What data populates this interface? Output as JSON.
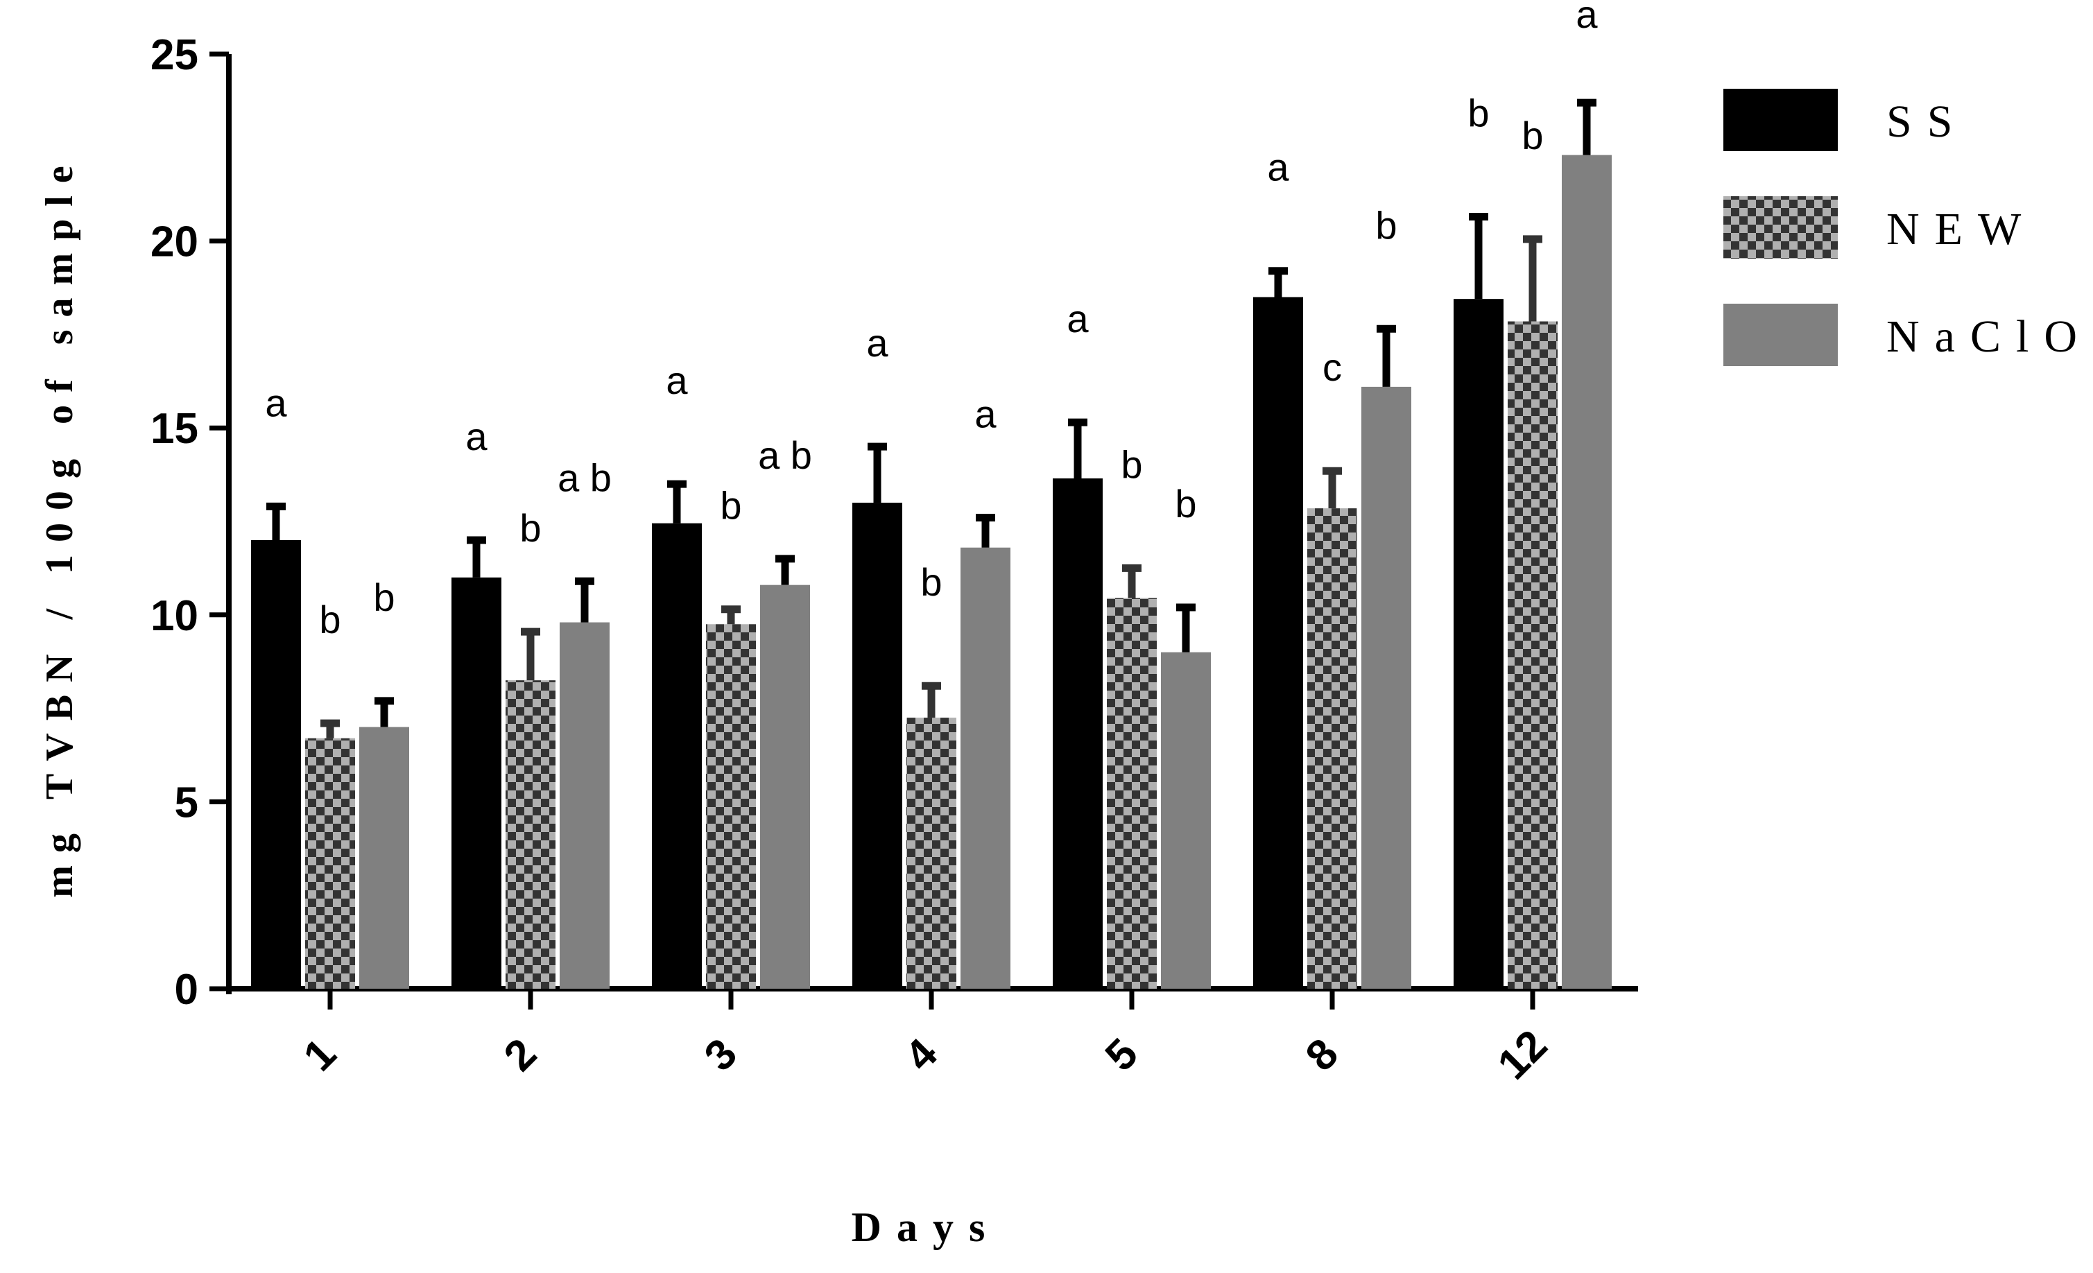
{
  "chart_data": {
    "type": "bar",
    "xlabel": "Days",
    "ylabel": "mg TVBN / 100g of sample",
    "ylim": [
      0,
      25
    ],
    "yticks": [
      0,
      5,
      10,
      15,
      20,
      25
    ],
    "categories": [
      "1",
      "2",
      "3",
      "4",
      "5",
      "8",
      "12"
    ],
    "legend_position": "top-right",
    "grid": false,
    "series": [
      {
        "name": "SS",
        "color": "#000000",
        "pattern": "solid",
        "values": [
          12.0,
          11.0,
          12.45,
          13.0,
          13.65,
          18.5,
          18.45
        ],
        "errors": [
          0.9,
          1.0,
          1.05,
          1.5,
          1.5,
          0.7,
          2.2
        ],
        "letters": [
          "a",
          "a",
          "a",
          "a",
          "a",
          "a",
          "b"
        ]
      },
      {
        "name": "NEW",
        "color": "#333333",
        "pattern": "checkered",
        "values": [
          6.7,
          8.25,
          9.75,
          7.25,
          10.45,
          12.85,
          17.85
        ],
        "errors": [
          0.4,
          1.3,
          0.4,
          0.85,
          0.8,
          1.0,
          2.2
        ],
        "letters": [
          "b",
          "b",
          "b",
          "b",
          "b",
          "c",
          "b"
        ]
      },
      {
        "name": "NaClO",
        "color": "#808080",
        "pattern": "solid",
        "values": [
          7.0,
          9.8,
          10.8,
          11.8,
          9.0,
          16.1,
          22.3
        ],
        "errors": [
          0.7,
          1.1,
          0.7,
          0.8,
          1.2,
          1.55,
          1.4
        ],
        "letters": [
          "b",
          "a b",
          "a b",
          "a",
          "b",
          "b",
          "a"
        ]
      }
    ]
  }
}
